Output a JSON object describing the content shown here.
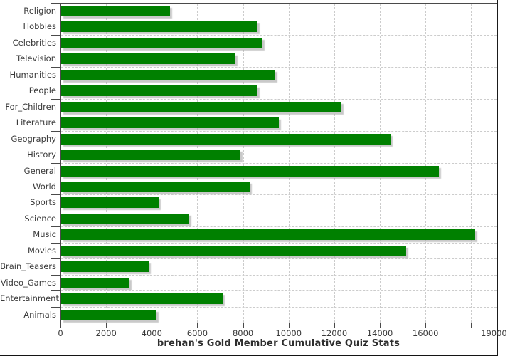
{
  "frame": {
    "background": "#ffffff",
    "border_color": "#1a1a1a"
  },
  "chart_data": {
    "type": "bar",
    "orientation": "horizontal",
    "title": "brehan's Gold Member Cumulative Quiz Stats",
    "xlabel": "",
    "ylabel": "",
    "legend": "none",
    "grid": "dashed",
    "bar_color": "#008000",
    "shadow_color": "#a5a5a5",
    "gridline_color": "#cccccc",
    "axis_color": "#4a4a4a",
    "label_color": "#3a3a3a",
    "xlim": [
      0,
      19080
    ],
    "categories": [
      "Religion",
      "Hobbies",
      "Celebrities",
      "Television",
      "Humanities",
      "People",
      "For_Children",
      "Literature",
      "Geography",
      "History",
      "General",
      "World",
      "Sports",
      "Science",
      "Music",
      "Movies",
      "Brain_Teasers",
      "Video_Games",
      "Entertainment",
      "Animals"
    ],
    "values": [
      4770,
      8590,
      8830,
      7650,
      9390,
      8610,
      12270,
      9550,
      14440,
      7870,
      16560,
      8250,
      4270,
      5600,
      18130,
      15110,
      3820,
      3000,
      7070,
      4190
    ],
    "x_ticks": [
      {
        "value": 0,
        "label": "0",
        "grid": false
      },
      {
        "value": 2000,
        "label": "2000",
        "grid": true
      },
      {
        "value": 4000,
        "label": "4000",
        "grid": true
      },
      {
        "value": 6000,
        "label": "6000",
        "grid": true
      },
      {
        "value": 8000,
        "label": "8000",
        "grid": true
      },
      {
        "value": 10000,
        "label": "10000",
        "grid": true
      },
      {
        "value": 12000,
        "label": "12000",
        "grid": true
      },
      {
        "value": 14000,
        "label": "14000",
        "grid": true
      },
      {
        "value": 16000,
        "label": "16000",
        "grid": true
      },
      {
        "value": 18000,
        "label": "",
        "grid": true
      },
      {
        "value": 19000,
        "label": "19000",
        "grid": false
      }
    ]
  }
}
